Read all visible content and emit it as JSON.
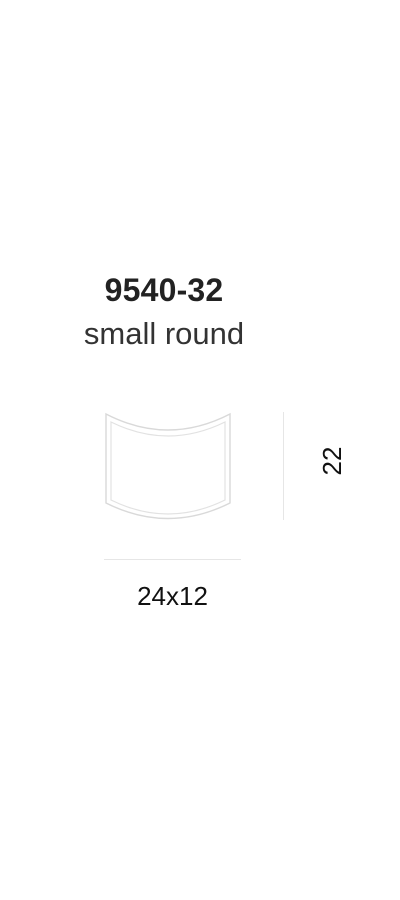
{
  "product": {
    "code": "9540-32",
    "name": "small round"
  },
  "dimensions": {
    "height": "22",
    "size": "24x12"
  },
  "colors": {
    "text": "#222222",
    "outline": "#d9d9d9",
    "divider": "#e6e6e6",
    "background": "#ffffff"
  }
}
